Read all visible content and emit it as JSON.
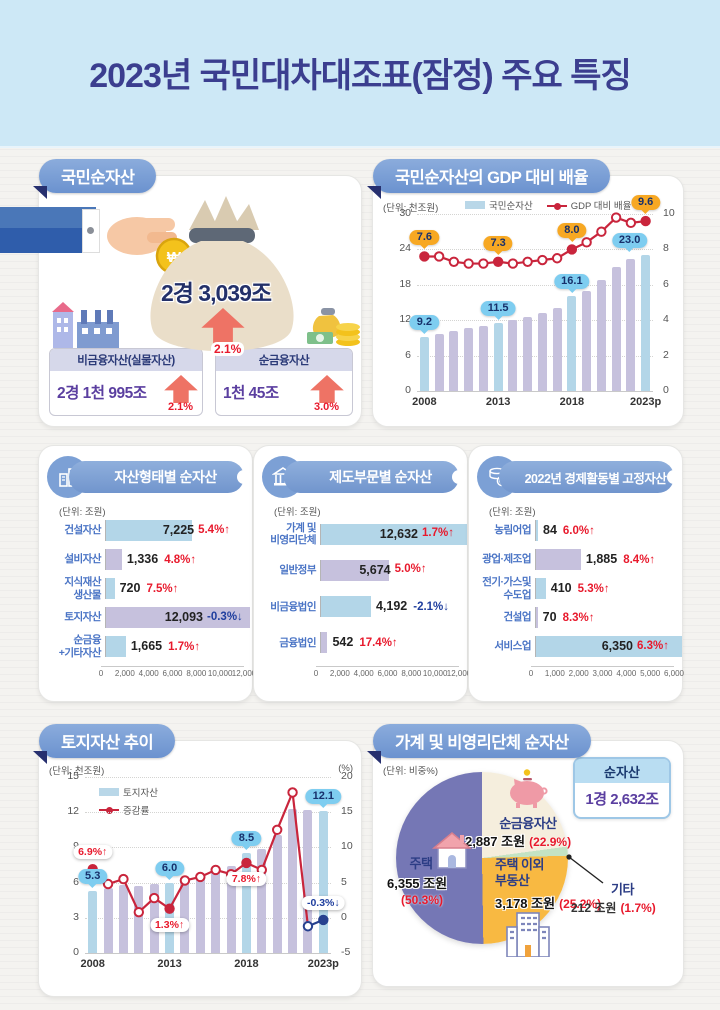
{
  "page": {
    "title": "2023년 국민대차대조표(잠정) 주요 특징"
  },
  "colors": {
    "bar_blue": "#b3d6e8",
    "bar_lavender": "#c6c1dd",
    "line_red": "#c9253c",
    "navy": "#27418f",
    "callout_blue": "#7ecdf0",
    "callout_amber": "#f7a823",
    "pct_red": "#e8192c",
    "pct_navy": "#1f3e9e"
  },
  "panels": {
    "net_assets": {
      "title": "국민순자산",
      "total_value": "2경 3,039조",
      "total_change": "2.1%",
      "left_box": {
        "label": "비금융자산(실물자산)",
        "value": "2경 1천 995조",
        "change": "2.1%"
      },
      "right_box": {
        "label": "순금융자산",
        "value": "1천 45조",
        "change": "3.0%"
      }
    },
    "household": {
      "title": "가계 및 비영리단체 순자산",
      "unit": "(단위: 비중%)",
      "netassets_box": {
        "label": "순자산",
        "value": "1경 2,632조"
      }
    }
  },
  "chart_data": [
    {
      "type": "combo_bar_line",
      "title": "국민순자산의 GDP 대비 배율",
      "unit": "(단위: 천조원)",
      "legend": [
        {
          "label": "국민순자산",
          "type": "bar"
        },
        {
          "label": "GDP 대비 배율",
          "type": "line"
        }
      ],
      "x": [
        "2008",
        "2009",
        "2010",
        "2011",
        "2012",
        "2013",
        "2014",
        "2015",
        "2016",
        "2017",
        "2018",
        "2019",
        "2020",
        "2021",
        "2022",
        "2023p"
      ],
      "x_ticks": [
        {
          "i": 0,
          "label": "2008"
        },
        {
          "i": 5,
          "label": "2013"
        },
        {
          "i": 10,
          "label": "2018"
        },
        {
          "i": 15,
          "label": "2023p"
        }
      ],
      "bar_series": {
        "name": "국민순자산",
        "values": [
          9.2,
          9.7,
          10.2,
          10.7,
          11.1,
          11.5,
          12.0,
          12.6,
          13.3,
          14.1,
          16.1,
          17.0,
          18.9,
          21.0,
          22.3,
          23.0
        ]
      },
      "line_series": {
        "name": "GDP 대비 배율",
        "values": [
          7.6,
          7.6,
          7.3,
          7.2,
          7.2,
          7.3,
          7.2,
          7.3,
          7.4,
          7.5,
          8.0,
          8.4,
          9.0,
          9.8,
          9.5,
          9.6
        ]
      },
      "left_axis": {
        "ticks": [
          30,
          24,
          18,
          12,
          6,
          0
        ],
        "min": 0,
        "max": 30
      },
      "right_axis": {
        "ticks": [
          10,
          8,
          6,
          4,
          2,
          0
        ],
        "min": 0,
        "max": 10
      },
      "highlight_i": [
        0,
        5,
        10,
        15
      ],
      "filled": [
        0,
        5,
        10,
        15
      ],
      "bar_callouts": [
        {
          "i": 0,
          "text": "9.2"
        },
        {
          "i": 5,
          "text": "11.5"
        },
        {
          "i": 10,
          "text": "16.1"
        },
        {
          "i": 15,
          "text": "23.0",
          "dx": -16
        }
      ],
      "line_callouts": [
        {
          "i": 0,
          "text": "7.6"
        },
        {
          "i": 5,
          "text": "7.3"
        },
        {
          "i": 10,
          "text": "8.0"
        },
        {
          "i": 15,
          "text": "9.6"
        }
      ]
    },
    {
      "type": "hbar",
      "title": "자산형태별 순자산",
      "unit": "(단위: 조원)",
      "rows": [
        {
          "label": "건설자산",
          "value": "7,225",
          "num": 7225,
          "pct": "5.4%",
          "dir": "up"
        },
        {
          "label": "설비자산",
          "value": "1,336",
          "num": 1336,
          "pct": "4.8%",
          "dir": "up"
        },
        {
          "label": "지식재산\n생산물",
          "value": "720",
          "num": 720,
          "pct": "7.5%",
          "dir": "up"
        },
        {
          "label": "토지자산",
          "value": "12,093",
          "num": 12093,
          "pct": "-0.3%",
          "dir": "down"
        },
        {
          "label": "순금융\n+기타자산",
          "value": "1,665",
          "num": 1665,
          "pct": "1.7%",
          "dir": "up"
        }
      ],
      "axis": {
        "max": 12000,
        "ticks": [
          "0",
          "2,000",
          "4,000",
          "6,000",
          "8,000",
          "10,000",
          "12,000"
        ]
      }
    },
    {
      "type": "hbar",
      "title": "제도부문별 순자산",
      "unit": "(단위: 조원)",
      "rows": [
        {
          "label": "가계 및\n비영리단체",
          "value": "12,632",
          "num": 12632,
          "pct": "1.7%",
          "dir": "up"
        },
        {
          "label": "일반정부",
          "value": "5,674",
          "num": 5674,
          "pct": "5.0%",
          "dir": "up"
        },
        {
          "label": "비금융법인",
          "value": "4,192",
          "num": 4192,
          "pct": "-2.1%",
          "dir": "down"
        },
        {
          "label": "금융법인",
          "value": "542",
          "num": 542,
          "pct": "17.4%",
          "dir": "up"
        }
      ],
      "axis": {
        "max": 12000,
        "ticks": [
          "0",
          "2,000",
          "4,000",
          "6,000",
          "8,000",
          "10,000",
          "12,000"
        ]
      }
    },
    {
      "type": "hbar",
      "title": "2022년 경제활동별 고정자산",
      "unit": "(단위: 조원)",
      "rows": [
        {
          "label": "농림어업",
          "value": "84",
          "num": 84,
          "pct": "6.0%",
          "dir": "up"
        },
        {
          "label": "광업·제조업",
          "value": "1,885",
          "num": 1885,
          "pct": "8.4%",
          "dir": "up"
        },
        {
          "label": "전기·가스및\n수도업",
          "value": "410",
          "num": 410,
          "pct": "5.3%",
          "dir": "up"
        },
        {
          "label": "건설업",
          "value": "70",
          "num": 70,
          "pct": "8.3%",
          "dir": "up"
        },
        {
          "label": "서비스업",
          "value": "6,350",
          "num": 6350,
          "pct": "6.3%",
          "dir": "up"
        }
      ],
      "axis": {
        "max": 6000,
        "ticks": [
          "0",
          "1,000",
          "2,000",
          "3,000",
          "4,000",
          "5,000",
          "6,000"
        ]
      }
    },
    {
      "type": "combo_bar_line",
      "title": "토지자산 추이",
      "unit": "(단위: 천조원)",
      "unit_right": "(%)",
      "legend": [
        {
          "label": "토지자산",
          "type": "bar"
        },
        {
          "label": "증감률",
          "type": "line"
        }
      ],
      "x": [
        "2008",
        "2009",
        "2010",
        "2011",
        "2012",
        "2013",
        "2014",
        "2015",
        "2016",
        "2017",
        "2018",
        "2019",
        "2020",
        "2021",
        "2022",
        "2023p"
      ],
      "x_ticks": [
        {
          "i": 0,
          "label": "2008"
        },
        {
          "i": 5,
          "label": "2013"
        },
        {
          "i": 10,
          "label": "2018"
        },
        {
          "i": 15,
          "label": "2023p"
        }
      ],
      "bar_series": {
        "name": "토지자산",
        "values": [
          5.3,
          5.5,
          5.8,
          5.7,
          5.9,
          6.0,
          6.4,
          6.6,
          7.0,
          7.4,
          8.5,
          8.9,
          10.1,
          12.3,
          12.2,
          12.1
        ]
      },
      "line_series": {
        "name": "증감률",
        "values": [
          6.9,
          4.8,
          5.5,
          0.8,
          2.8,
          1.3,
          5.3,
          5.8,
          6.8,
          6.2,
          7.8,
          6.8,
          12.5,
          17.8,
          -1.2,
          -0.3
        ]
      },
      "left_axis": {
        "ticks": [
          15,
          12,
          9,
          6,
          3,
          0
        ],
        "min": 0,
        "max": 15
      },
      "right_axis": {
        "ticks": [
          20,
          15,
          10,
          5,
          0,
          -5
        ],
        "min": -5,
        "max": 20
      },
      "highlight_i": [
        0,
        5,
        10,
        15
      ],
      "filled": [
        0,
        5,
        10,
        15
      ],
      "navy_from": 14,
      "bar_callouts": [
        {
          "i": 0,
          "text": "5.3"
        },
        {
          "i": 5,
          "text": "6.0"
        },
        {
          "i": 10,
          "text": "8.5"
        },
        {
          "i": 15,
          "text": "12.1"
        }
      ],
      "line_labels": [
        {
          "i": 0,
          "text": "6.9%",
          "dir": "up",
          "pos": "above"
        },
        {
          "i": 5,
          "text": "1.3%",
          "dir": "up",
          "pos": "below"
        },
        {
          "i": 10,
          "text": "7.8%",
          "dir": "up",
          "pos": "below"
        },
        {
          "i": 15,
          "text": "-0.3%",
          "dir": "down",
          "pos": "above"
        }
      ]
    },
    {
      "type": "pie",
      "title": "가계 및 비영리단체 순자산",
      "unit": "(단위: 비중%)",
      "slices": [
        {
          "label": "순금융자산",
          "value_text": "2,887 조원",
          "pct": 22.9,
          "pct_label": "(22.9%)",
          "color": "#f5eedd"
        },
        {
          "label": "기타",
          "value_text": "212 조원",
          "pct": 1.7,
          "pct_label": "(1.7%)",
          "color": "#c4e3c3"
        },
        {
          "label": "주택 이외 부동산",
          "label_line1": "주택 이외",
          "label_line2": "부동산",
          "value_text": "3,178 조원",
          "pct": 25.2,
          "pct_label": "(25.2%)",
          "color": "#f8b942"
        },
        {
          "label": "주택",
          "value_text": "6,355 조원",
          "pct": 50.3,
          "pct_label": "(50.3%)",
          "color": "#7577b5"
        }
      ]
    }
  ]
}
